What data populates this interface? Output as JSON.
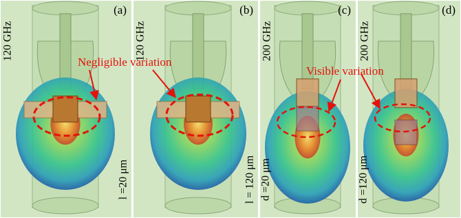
{
  "panels": [
    {
      "label": "(a)",
      "frequency": "120 GHz",
      "dimension": "l =20 μm"
    },
    {
      "label": "(b)",
      "frequency": "120 GHz",
      "dimension": "l = 120 μm"
    },
    {
      "label": "(c)",
      "frequency": "200 GHz",
      "dimension": "d =20 μm"
    },
    {
      "label": "(d)",
      "frequency": "200 GHz",
      "dimension": "d =120 μm"
    }
  ],
  "annotations": {
    "negligible": "Negligible variation",
    "visible": "Visible variation"
  }
}
